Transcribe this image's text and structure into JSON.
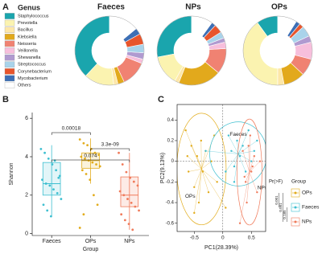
{
  "chart_data": [
    {
      "type": "pie",
      "panel": "A",
      "legend_title": "Genus",
      "categories": [
        "Staphylococcus",
        "Prevotella",
        "Bacillus",
        "Klebsiella",
        "Neisseria",
        "Veillonella",
        "Shewanella",
        "Streptococcus",
        "Corynebacterium",
        "Mycobacterium",
        "Others"
      ],
      "colors": [
        "#1aa5ad",
        "#fbf3b0",
        "#fde7a8",
        "#e2a91c",
        "#f08272",
        "#f7bfdc",
        "#b09ad0",
        "#a9d3ea",
        "#e8552c",
        "#3d6fb5",
        "#ffffff"
      ],
      "series": [
        {
          "name": "Faeces",
          "values": [
            38,
            14,
            2,
            3,
            12,
            2,
            3,
            4,
            5,
            3,
            14
          ]
        },
        {
          "name": "NPs",
          "values": [
            28,
            14,
            2,
            20,
            12,
            3,
            2,
            3,
            4,
            2,
            10
          ]
        },
        {
          "name": "OPs",
          "values": [
            10,
            40,
            3,
            10,
            8,
            8,
            3,
            5,
            2,
            2,
            9
          ]
        }
      ]
    },
    {
      "type": "box",
      "panel": "B",
      "y_label": "Shannon",
      "x_label": "Group",
      "categories": [
        "Faeces",
        "OPs",
        "NPs"
      ],
      "ylim": [
        -0.1,
        6.3
      ],
      "yticks": [
        0,
        2,
        4,
        6
      ],
      "series": [
        {
          "name": "Faeces",
          "color": "#3dbfd0",
          "box": [
            0.9,
            2.0,
            2.6,
            3.7,
            4.6
          ],
          "points": [
            4.4,
            4.2,
            3.9,
            3.6,
            3.3,
            3.0,
            2.8,
            2.6,
            2.5,
            2.3,
            2.1,
            1.8,
            1.5,
            1.2,
            0.9,
            3.8,
            2.9
          ]
        },
        {
          "name": "OPs",
          "color": "#e2ac1c",
          "box": [
            2.6,
            3.4,
            3.8,
            4.2,
            4.95
          ],
          "points": [
            4.9,
            4.7,
            4.6,
            4.4,
            4.2,
            4.1,
            4.0,
            3.9,
            3.8,
            3.7,
            3.6,
            3.5,
            3.3,
            3.1,
            2.8,
            2.0,
            1.5,
            0.3,
            1.0
          ]
        },
        {
          "name": "NPs",
          "color": "#f07a5a",
          "box": [
            0.2,
            1.4,
            2.0,
            2.95,
            4.2
          ],
          "points": [
            4.2,
            3.6,
            3.2,
            2.9,
            2.7,
            2.5,
            2.2,
            2.0,
            1.8,
            1.6,
            1.4,
            1.2,
            1.0,
            0.7,
            0.5,
            0.2
          ]
        }
      ],
      "comparisons": [
        {
          "pair": [
            "Faeces",
            "OPs"
          ],
          "label": "0.00018"
        },
        {
          "pair": [
            "OPs",
            "NPs"
          ],
          "label": "3.3e-09"
        },
        {
          "pair": [
            "Faeces",
            "NPs"
          ],
          "label": "0.074"
        }
      ]
    },
    {
      "type": "scatter",
      "panel": "C",
      "x_label": "PC1(28.39%)",
      "y_label": "PC2(9.13%)",
      "xlim": [
        -0.8,
        0.75
      ],
      "xticks": [
        -0.5,
        0,
        0.5
      ],
      "ylim": [
        -0.68,
        0.55
      ],
      "yticks": [
        -0.6,
        -0.4,
        -0.2,
        0,
        0.2,
        0.4
      ],
      "legend_title": "Group",
      "test_label": "Pr(>F)",
      "p_values": [
        0.001,
        0.001,
        0.185
      ],
      "series": [
        {
          "name": "OPs",
          "color": "#e2ac1c",
          "x": [
            -0.65,
            -0.6,
            -0.55,
            -0.5,
            -0.45,
            -0.42,
            -0.38,
            -0.35,
            -0.3,
            -0.25,
            -0.2,
            -0.15,
            -0.5,
            -0.62,
            0.05,
            -0.1
          ],
          "values": [
            0.3,
            -0.1,
            0.15,
            -0.25,
            0.05,
            -0.4,
            0.2,
            -0.1,
            0.1,
            -0.3,
            0.0,
            0.25,
            -0.5,
            0.05,
            -0.45,
            -0.2
          ]
        },
        {
          "name": "Faeces",
          "color": "#3dbfd0",
          "x": [
            0.1,
            0.15,
            0.2,
            0.25,
            0.3,
            0.35,
            0.4,
            0.45,
            0.5,
            0.55,
            0.2,
            0.05,
            0.6,
            -0.3
          ],
          "values": [
            0.25,
            0.1,
            -0.05,
            0.2,
            0.05,
            0.15,
            -0.1,
            0.3,
            0.0,
            0.1,
            -0.2,
            -0.1,
            0.2,
            0.1
          ]
        },
        {
          "name": "NPs",
          "color": "#f07a5a",
          "x": [
            0.35,
            0.4,
            0.45,
            0.5,
            0.55,
            0.6,
            0.42,
            0.48,
            0.52,
            0.38,
            0.3,
            0.65
          ],
          "values": [
            0.1,
            -0.2,
            0.15,
            -0.1,
            0.05,
            -0.3,
            -0.4,
            0.25,
            -0.05,
            -0.15,
            -0.6,
            0.0
          ]
        }
      ]
    }
  ]
}
